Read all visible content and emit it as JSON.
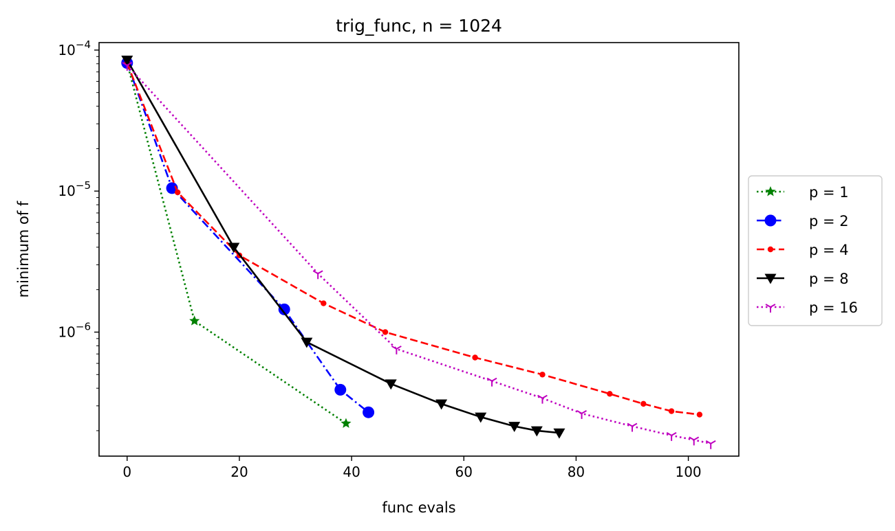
{
  "chart_data": {
    "type": "line",
    "title": "trig_func, n = 1024",
    "xlabel": "func evals",
    "ylabel": "minimum of f",
    "xscale": "linear",
    "yscale": "log",
    "xlim": [
      -5,
      109
    ],
    "ylim": [
      1.32e-07,
      0.000113
    ],
    "xticks": [
      0,
      20,
      40,
      60,
      80,
      100
    ],
    "xtick_labels": [
      "0",
      "20",
      "40",
      "60",
      "80",
      "100"
    ],
    "yticks": [
      {
        "value": 1e-06,
        "base": "10",
        "exp": "−6"
      },
      {
        "value": 1e-05,
        "base": "10",
        "exp": "−5"
      },
      {
        "value": 0.0001,
        "base": "10",
        "exp": "−4"
      }
    ],
    "grid": false,
    "legend_position": "right (outside plot)",
    "series": [
      {
        "name": "p = 1",
        "color": "#008000",
        "dash": "dotted",
        "marker": "star",
        "x": [
          0,
          12,
          39
        ],
        "y": [
          8.1e-05,
          1.2e-06,
          2.25e-07
        ]
      },
      {
        "name": "p = 2",
        "color": "#0000ff",
        "dash": "dashdot",
        "marker": "circle",
        "x": [
          0,
          8,
          28,
          38,
          43
        ],
        "y": [
          8.1e-05,
          1.05e-05,
          1.45e-06,
          3.9e-07,
          2.7e-07
        ]
      },
      {
        "name": "p = 4",
        "color": "#ff0000",
        "dash": "dashed",
        "marker": "point",
        "x": [
          0,
          9,
          20,
          35,
          46,
          62,
          74,
          86,
          92,
          97,
          102
        ],
        "y": [
          8.1e-05,
          9.8e-06,
          3.5e-06,
          1.6e-06,
          1e-06,
          6.6e-07,
          5e-07,
          3.65e-07,
          3.1e-07,
          2.75e-07,
          2.6e-07
        ]
      },
      {
        "name": "p = 8",
        "color": "#000000",
        "dash": "solid",
        "marker": "triangle-down",
        "x": [
          0,
          19,
          32,
          47,
          56,
          63,
          69,
          73,
          77
        ],
        "y": [
          8.5e-05,
          4e-06,
          8.5e-07,
          4.3e-07,
          3.1e-07,
          2.5e-07,
          2.15e-07,
          2e-07,
          1.93e-07
        ]
      },
      {
        "name": "p = 16",
        "color": "#bf00bf",
        "dash": "dotted",
        "marker": "tri-down",
        "x": [
          0,
          34,
          48,
          65,
          74,
          81,
          90,
          97,
          101,
          104
        ],
        "y": [
          7.8e-05,
          2.6e-06,
          7.6e-07,
          4.5e-07,
          3.4e-07,
          2.65e-07,
          2.15e-07,
          1.85e-07,
          1.72e-07,
          1.62e-07
        ]
      }
    ]
  }
}
